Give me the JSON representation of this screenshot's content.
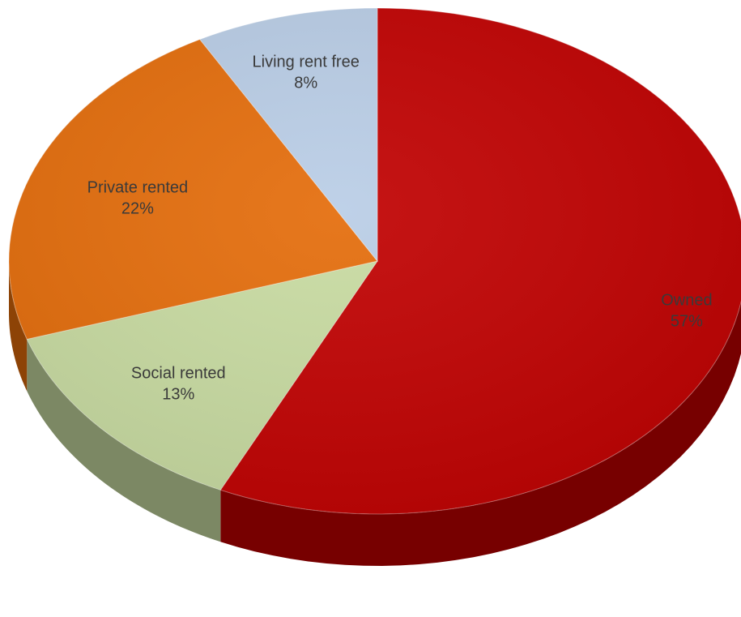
{
  "chart_data": {
    "type": "pie",
    "style": "3d",
    "title": "",
    "slices": [
      {
        "name": "Owned",
        "value": 57,
        "label": "57%",
        "color": "#c00000"
      },
      {
        "name": "Social rented",
        "value": 13,
        "label": "13%",
        "color": "#c8dba1"
      },
      {
        "name": "Private rented",
        "value": 22,
        "label": "22%",
        "color": "#e46c0a"
      },
      {
        "name": "Living rent free",
        "value": 8,
        "label": "8%",
        "color": "#b9cde6"
      }
    ]
  }
}
